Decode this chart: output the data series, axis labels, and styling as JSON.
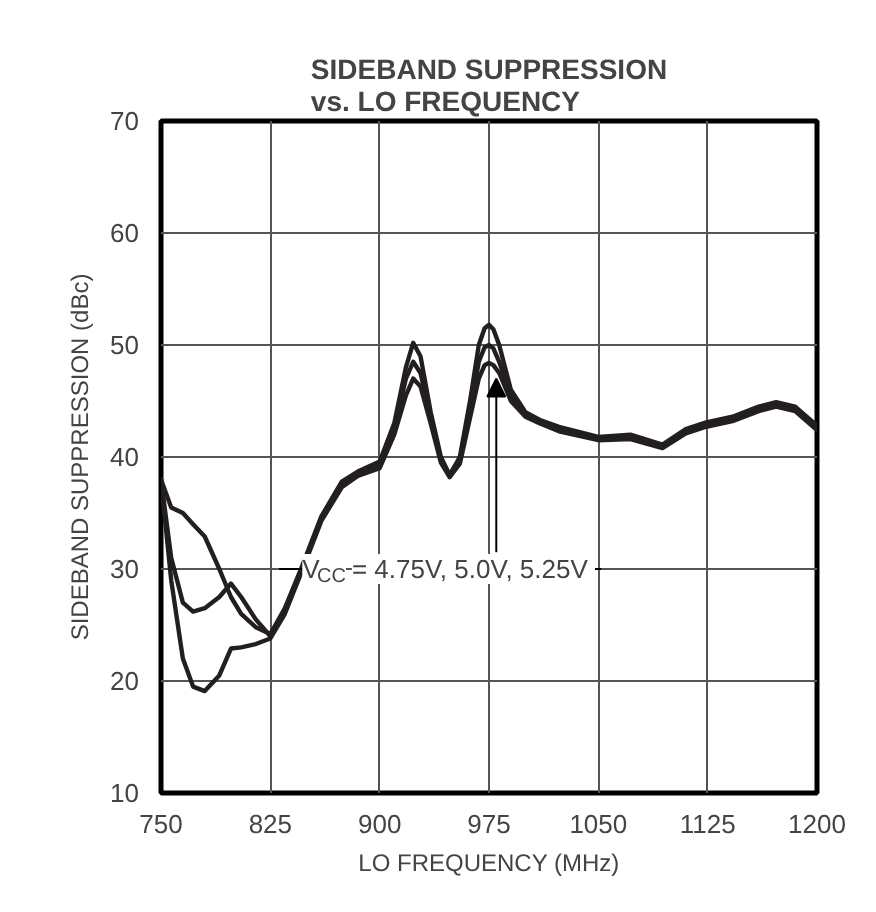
{
  "chart_data": {
    "type": "line",
    "title": "SIDEBAND SUPPRESSION\nvs. LO FREQUENCY",
    "xlabel": "LO FREQUENCY (MHz)",
    "ylabel": "SIDEBAND SUPPRESSION (dBc)",
    "x": [
      750,
      757,
      765,
      772,
      780,
      790,
      798,
      805,
      815,
      825,
      835,
      846,
      860,
      874,
      885,
      900,
      910,
      918,
      923,
      928,
      935,
      942,
      948,
      955,
      962,
      968,
      972,
      975,
      978,
      982,
      990,
      1000,
      1010,
      1023,
      1050,
      1072,
      1094,
      1110,
      1124,
      1142,
      1160,
      1172,
      1185,
      1200
    ],
    "series": [
      {
        "color": "#231f20",
        "values": [
          38,
          35.5,
          35,
          34,
          32.9,
          30,
          27.5,
          26,
          24.8,
          24.2,
          26.5,
          30,
          34.7,
          37.8,
          38.7,
          39.6,
          43,
          48,
          50.2,
          49,
          44,
          40,
          38.4,
          40,
          45,
          50,
          51.5,
          51.8,
          51.4,
          50,
          46,
          44,
          43.3,
          42.7,
          41.8,
          42,
          41.1,
          42.5,
          43.1,
          43.6,
          44.5,
          44.9,
          44.5,
          42.8
        ]
      },
      {
        "color": "#231f20",
        "values": [
          38,
          31,
          27,
          26.2,
          26.5,
          27.5,
          28.7,
          27.5,
          25.5,
          24,
          26.3,
          29.8,
          34.5,
          37.5,
          38.5,
          39.3,
          42.5,
          47,
          48.5,
          47.5,
          43.5,
          39.7,
          38.3,
          39.7,
          44,
          48.5,
          49.8,
          50,
          49.7,
          48.5,
          45.5,
          43.8,
          43.1,
          42.5,
          41.6,
          41.8,
          40.9,
          42.3,
          42.9,
          43.4,
          44.3,
          44.7,
          44.3,
          42.6
        ]
      },
      {
        "color": "#231f20",
        "values": [
          38,
          29,
          22,
          19.5,
          19.1,
          20.5,
          22.9,
          23,
          23.3,
          23.8,
          26,
          29.6,
          34.3,
          37.3,
          38.3,
          39,
          42,
          45.5,
          47,
          46.3,
          43,
          39.5,
          38.2,
          39.4,
          43.5,
          47,
          48.2,
          48.4,
          48.2,
          47.5,
          45,
          43.6,
          43,
          42.3,
          41.5,
          41.6,
          40.8,
          42.1,
          42.7,
          43.2,
          44.1,
          44.5,
          44.1,
          42.4
        ]
      }
    ],
    "xlim": [
      750,
      1200
    ],
    "ylim": [
      10,
      70
    ],
    "xticks": [
      750,
      825,
      900,
      975,
      1050,
      1125,
      1200
    ],
    "yticks": [
      10,
      20,
      30,
      40,
      50,
      60,
      70
    ],
    "grid": true,
    "line_style": "solid",
    "annotations": [
      {
        "text": "V$_{CC}$ = 4.75V, 5.0V, 5.25V",
        "x": 980,
        "y": 47
      }
    ]
  }
}
